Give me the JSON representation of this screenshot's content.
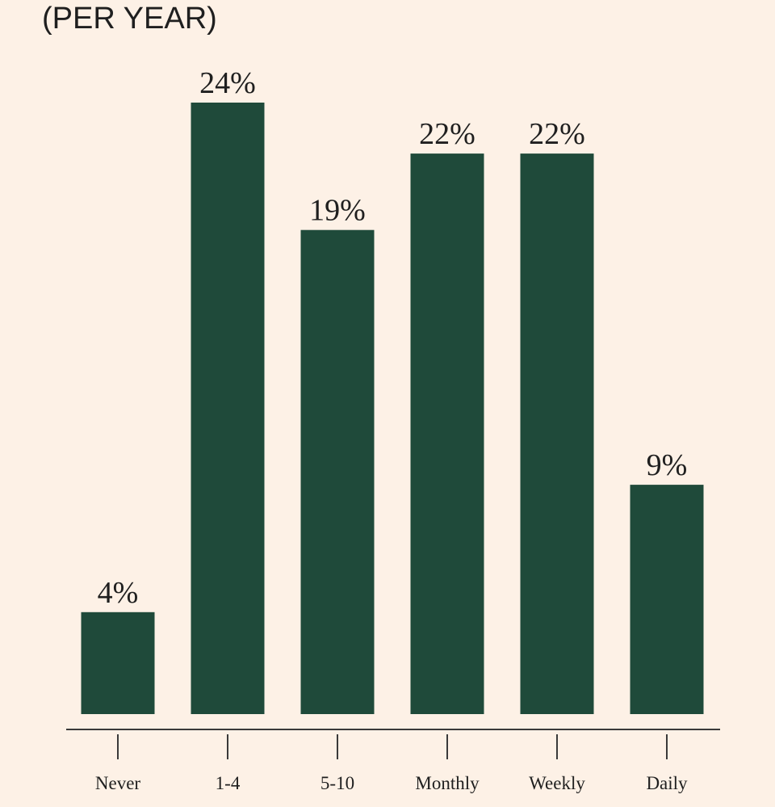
{
  "chart_data": {
    "type": "bar",
    "subtitle": "(PER YEAR)",
    "categories": [
      "Never",
      "1-4",
      "5-10",
      "Monthly",
      "Weekly",
      "Daily"
    ],
    "values": [
      4,
      24,
      19,
      22,
      22,
      9
    ],
    "data_labels": [
      "4%",
      "24%",
      "19%",
      "22%",
      "22%",
      "9%"
    ],
    "value_unit": "%",
    "ylim": [
      0,
      24
    ],
    "grid": false,
    "legend": "none",
    "colors": {
      "background": "#fdf1e6",
      "bar": "#1f4a3a",
      "axis": "#3a3a3a",
      "text": "#1f1f1f"
    }
  }
}
